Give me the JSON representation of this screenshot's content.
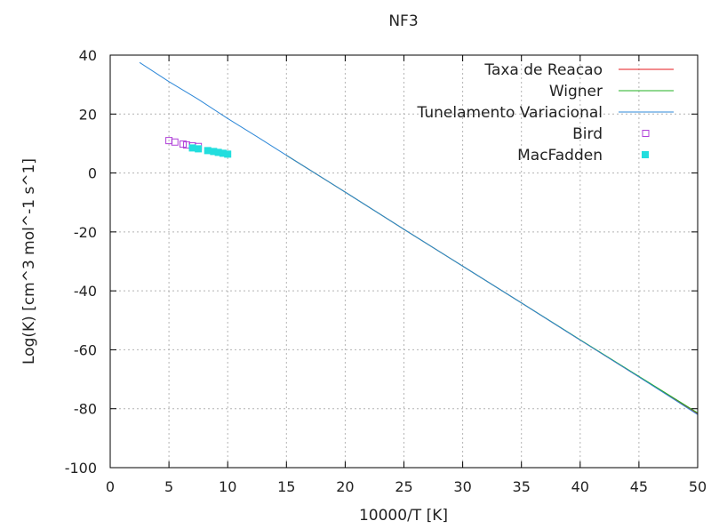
{
  "chart_data": {
    "type": "line",
    "title": "NF3",
    "xlabel": "10000/T [K]",
    "ylabel": "Log(K) [cm^3 mol^-1 s^1]",
    "xlim": [
      0,
      50
    ],
    "ylim": [
      -100,
      40
    ],
    "xticks": [
      0,
      5,
      10,
      15,
      20,
      25,
      30,
      35,
      40,
      45,
      50
    ],
    "yticks": [
      -100,
      -80,
      -60,
      -40,
      -20,
      0,
      20,
      40
    ],
    "grid": true,
    "legend_position": "top-right",
    "series": [
      {
        "name": "Taxa de Reacao",
        "style": "line",
        "color": "#e41a1c",
        "x": [
          15,
          20,
          25,
          30,
          35,
          40,
          45,
          50
        ],
        "y": [
          6,
          -6.5,
          -19.1,
          -31.6,
          -44.1,
          -56.7,
          -69.2,
          -81.7
        ]
      },
      {
        "name": "Wigner",
        "style": "line",
        "color": "#22b022",
        "x": [
          15,
          20,
          25,
          30,
          35,
          40,
          45,
          50
        ],
        "y": [
          6,
          -6.5,
          -19.1,
          -31.6,
          -44.1,
          -56.6,
          -69.0,
          -81.4
        ]
      },
      {
        "name": "Tunelamento Variacional",
        "style": "line",
        "color": "#2e88d8",
        "x": [
          2.5,
          5,
          7.5,
          10,
          12.5,
          15,
          20,
          25,
          30,
          35,
          40,
          45,
          50
        ],
        "y": [
          37.5,
          31,
          25,
          18.5,
          12.3,
          6,
          -6.5,
          -19.1,
          -31.6,
          -44.1,
          -56.7,
          -69.2,
          -82.0
        ]
      },
      {
        "name": "Bird",
        "style": "open-square",
        "color": "#b040d8",
        "x": [
          5,
          5.5,
          6.2,
          6.5,
          7,
          7.5
        ],
        "y": [
          11,
          10.5,
          9.8,
          9.5,
          9.2,
          9
        ]
      },
      {
        "name": "MacFadden",
        "style": "filled-square",
        "color": "#22dede",
        "x": [
          7,
          7.5,
          8.3,
          8.8,
          9.2,
          9.6,
          10
        ],
        "y": [
          8.5,
          8.2,
          7.6,
          7.3,
          7,
          6.7,
          6.4
        ]
      }
    ]
  }
}
